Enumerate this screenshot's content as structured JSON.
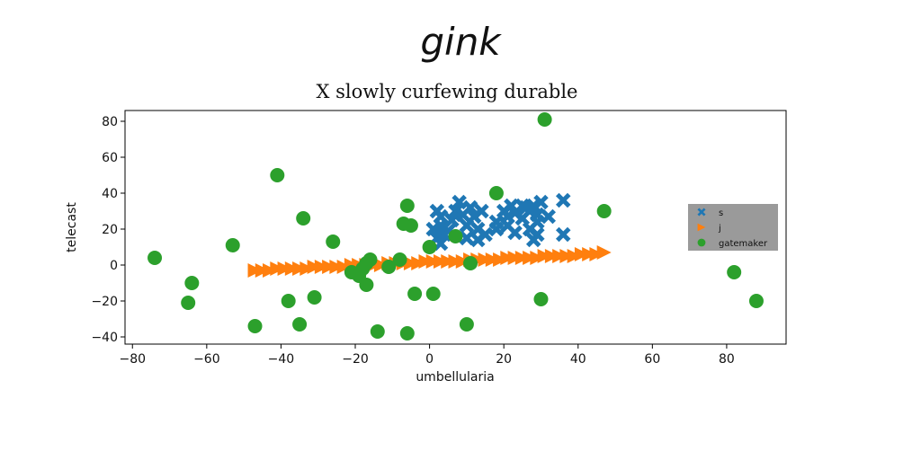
{
  "suptitle": "gink",
  "chart_data": {
    "type": "scatter",
    "title": "X slowly curfewing durable",
    "xlabel": "umbellularia",
    "ylabel": "telecast",
    "xlim": [
      -82,
      96
    ],
    "ylim": [
      -44,
      86
    ],
    "xticks": [
      -80,
      -60,
      -40,
      -20,
      0,
      20,
      40,
      60,
      80
    ],
    "yticks": [
      -40,
      -20,
      0,
      20,
      40,
      60,
      80
    ],
    "xtick_labels": [
      "−80",
      "−60",
      "−40",
      "−20",
      "0",
      "20",
      "40",
      "60",
      "80"
    ],
    "ytick_labels": [
      "−40",
      "−20",
      "0",
      "20",
      "40",
      "60",
      "80"
    ],
    "grid": false,
    "legend_position": "right",
    "series": [
      {
        "name": "s",
        "marker": "x",
        "color": "#1f77b4",
        "points": [
          [
            2,
            30
          ],
          [
            3,
            27
          ],
          [
            3,
            22
          ],
          [
            1,
            20
          ],
          [
            2,
            15
          ],
          [
            3,
            12
          ],
          [
            4,
            17
          ],
          [
            5,
            19
          ],
          [
            6,
            25
          ],
          [
            7,
            30
          ],
          [
            8,
            35
          ],
          [
            9,
            28
          ],
          [
            10,
            22
          ],
          [
            10,
            15
          ],
          [
            11,
            32
          ],
          [
            12,
            27
          ],
          [
            13,
            20
          ],
          [
            13,
            14
          ],
          [
            14,
            30
          ],
          [
            15,
            17
          ],
          [
            18,
            24
          ],
          [
            18,
            20
          ],
          [
            20,
            30
          ],
          [
            21,
            27
          ],
          [
            21,
            22
          ],
          [
            22,
            33
          ],
          [
            23,
            29
          ],
          [
            23,
            18
          ],
          [
            25,
            33
          ],
          [
            25,
            26
          ],
          [
            26,
            32
          ],
          [
            27,
            30
          ],
          [
            27,
            20
          ],
          [
            28,
            14
          ],
          [
            28,
            33
          ],
          [
            29,
            28
          ],
          [
            29,
            24
          ],
          [
            29,
            17
          ],
          [
            30,
            35
          ],
          [
            32,
            27
          ],
          [
            36,
            36
          ],
          [
            36,
            17
          ]
        ]
      },
      {
        "name": "j",
        "marker": "triangle-right",
        "color": "#ff7f0e",
        "points": [
          [
            -47,
            -3
          ],
          [
            -45,
            -3
          ],
          [
            -43,
            -3
          ],
          [
            -41,
            -2
          ],
          [
            -39,
            -2
          ],
          [
            -37,
            -2
          ],
          [
            -35,
            -2
          ],
          [
            -33,
            -2
          ],
          [
            -31,
            -1
          ],
          [
            -29,
            -1
          ],
          [
            -27,
            -1
          ],
          [
            -25,
            -1
          ],
          [
            -23,
            -1
          ],
          [
            -21,
            0
          ],
          [
            -19,
            0
          ],
          [
            -17,
            0
          ],
          [
            -15,
            0
          ],
          [
            -13,
            0
          ],
          [
            -11,
            1
          ],
          [
            -9,
            1
          ],
          [
            -7,
            1
          ],
          [
            -5,
            1
          ],
          [
            -3,
            1
          ],
          [
            -1,
            2
          ],
          [
            1,
            2
          ],
          [
            3,
            2
          ],
          [
            5,
            2
          ],
          [
            7,
            2
          ],
          [
            9,
            2
          ],
          [
            11,
            3
          ],
          [
            13,
            3
          ],
          [
            15,
            3
          ],
          [
            17,
            3
          ],
          [
            19,
            3
          ],
          [
            21,
            4
          ],
          [
            23,
            4
          ],
          [
            25,
            4
          ],
          [
            27,
            4
          ],
          [
            29,
            4
          ],
          [
            31,
            5
          ],
          [
            33,
            5
          ],
          [
            35,
            5
          ],
          [
            37,
            5
          ],
          [
            39,
            5
          ],
          [
            41,
            6
          ],
          [
            43,
            6
          ],
          [
            45,
            6
          ],
          [
            47,
            7
          ]
        ]
      },
      {
        "name": "gatemaker",
        "marker": "circle",
        "color": "#2ca02c",
        "points": [
          [
            -74,
            4
          ],
          [
            -64,
            -10
          ],
          [
            -65,
            -21
          ],
          [
            -53,
            11
          ],
          [
            -47,
            -34
          ],
          [
            -41,
            50
          ],
          [
            -38,
            -20
          ],
          [
            -35,
            -33
          ],
          [
            -34,
            26
          ],
          [
            -31,
            -18
          ],
          [
            -26,
            13
          ],
          [
            -21,
            -4
          ],
          [
            -19,
            -6
          ],
          [
            -18,
            -2
          ],
          [
            -17,
            -11
          ],
          [
            -17,
            1
          ],
          [
            -16,
            3
          ],
          [
            -14,
            -37
          ],
          [
            -11,
            -1
          ],
          [
            -8,
            3
          ],
          [
            -7,
            23
          ],
          [
            -6,
            33
          ],
          [
            -6,
            -38
          ],
          [
            -5,
            22
          ],
          [
            -4,
            -16
          ],
          [
            0,
            10
          ],
          [
            1,
            -16
          ],
          [
            7,
            16
          ],
          [
            10,
            -33
          ],
          [
            11,
            1
          ],
          [
            18,
            40
          ],
          [
            30,
            -19
          ],
          [
            31,
            81
          ],
          [
            47,
            30
          ],
          [
            82,
            -4
          ],
          [
            88,
            -20
          ]
        ]
      }
    ]
  }
}
